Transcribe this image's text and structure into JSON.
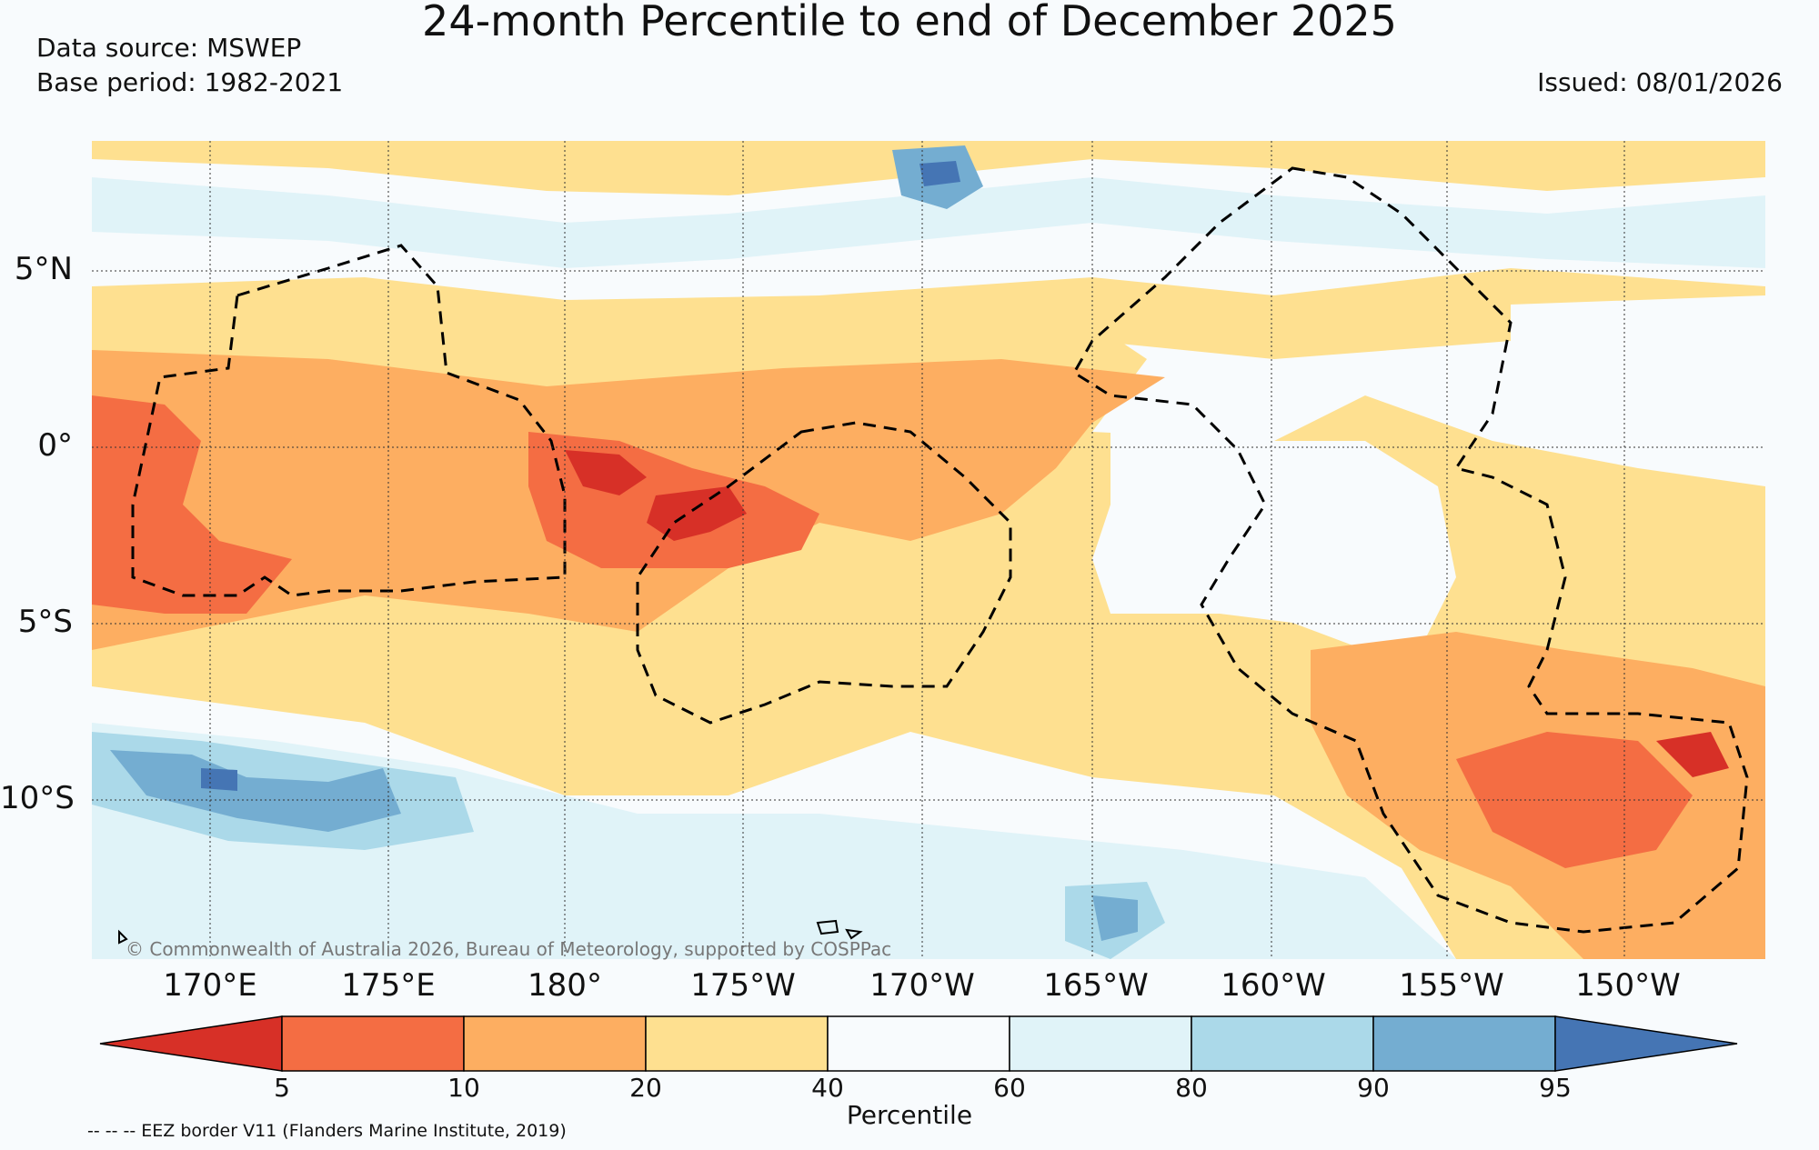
{
  "header": {
    "title": "24-month Percentile to end of December 2025",
    "data_source": "Data source: MSWEP",
    "base_period": "Base period: 1982-2021",
    "issued": "Issued: 08/01/2026"
  },
  "map": {
    "lon_labels": [
      "170°E",
      "175°E",
      "180°",
      "175°W",
      "170°W",
      "165°W",
      "160°W",
      "155°W",
      "150°W"
    ],
    "lat_labels": [
      "5°N",
      "0°",
      "5°S",
      "10°S"
    ],
    "copyright": "© Commonwealth of Australia 2026, Bureau of Meteorology, supported by COSPPac"
  },
  "colorbar": {
    "label": "Percentile",
    "ticks": [
      "5",
      "10",
      "20",
      "40",
      "60",
      "80",
      "90",
      "95"
    ],
    "bins": [
      {
        "range": "<5",
        "color": "#d73027"
      },
      {
        "range": "5-10",
        "color": "#f46d43"
      },
      {
        "range": "10-20",
        "color": "#fdae61"
      },
      {
        "range": "20-40",
        "color": "#fee090"
      },
      {
        "range": "40-60",
        "color": "#f8fbfd"
      },
      {
        "range": "60-80",
        "color": "#e0f3f8"
      },
      {
        "range": "80-90",
        "color": "#abd9e9"
      },
      {
        "range": "90-95",
        "color": "#74add1"
      },
      {
        "range": ">95",
        "color": "#4575b4"
      }
    ]
  },
  "footer": {
    "eez_note": "-- -- -- EEZ border V11 (Flanders Marine Institute, 2019)"
  }
}
